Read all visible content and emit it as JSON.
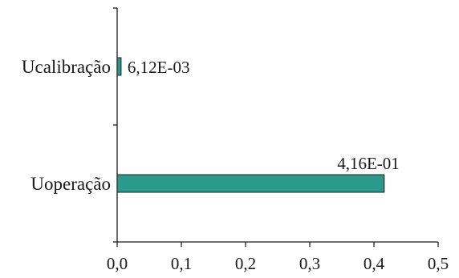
{
  "chart_data": {
    "type": "bar",
    "orientation": "horizontal",
    "categories": [
      "Ucalibração",
      "Uoperação"
    ],
    "values": [
      0.00612,
      0.416
    ],
    "data_labels": [
      "6,12E-03",
      "4,16E-01"
    ],
    "xlim": [
      0,
      0.5
    ],
    "x_ticks": [
      0,
      0.1,
      0.2,
      0.3,
      0.4,
      0.5
    ],
    "x_tick_labels": [
      "0,0",
      "0,1",
      "0,2",
      "0,3",
      "0,4",
      "0,5"
    ],
    "grid": false,
    "legend": "none",
    "title": "",
    "xlabel": "",
    "ylabel": ""
  },
  "colors": {
    "bar_fill": "#2a9a8c",
    "bar_stroke": "#1c1c1c",
    "axis": "#1c1c1c",
    "text": "#1a1a1a"
  }
}
